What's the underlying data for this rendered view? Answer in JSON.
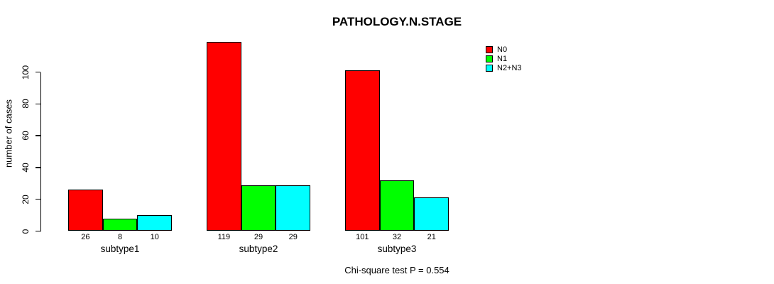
{
  "chart_data": {
    "type": "bar",
    "title": "PATHOLOGY.N.STAGE",
    "ylabel": "number of cases",
    "xlabel": "",
    "categories": [
      "subtype1",
      "subtype2",
      "subtype3"
    ],
    "series": [
      {
        "name": "N0",
        "color": "#FF0000",
        "values": [
          26,
          119,
          101
        ]
      },
      {
        "name": "N1",
        "color": "#00FF00",
        "values": [
          8,
          29,
          32
        ]
      },
      {
        "name": "N2+N3",
        "color": "#00FFFF",
        "values": [
          10,
          29,
          21
        ]
      }
    ],
    "bar_value_labels": [
      [
        "26",
        "119",
        "101"
      ],
      [
        "8",
        "29",
        "32"
      ],
      [
        "10",
        "29",
        "21"
      ]
    ],
    "yticks": [
      0,
      20,
      40,
      60,
      80,
      100
    ],
    "ylim": [
      0,
      125
    ],
    "grid": false,
    "legend_position": "top-right",
    "legend_entries": [
      "N0",
      "N1",
      "N2+N3"
    ],
    "annotation": "Chi-square test P = 0.554"
  },
  "colors": {
    "background": "#FFFFFF",
    "axis": "#000000",
    "text": "#000000",
    "n0": "#FF0000",
    "n1": "#00FF00",
    "n2n3": "#00FFFF"
  }
}
